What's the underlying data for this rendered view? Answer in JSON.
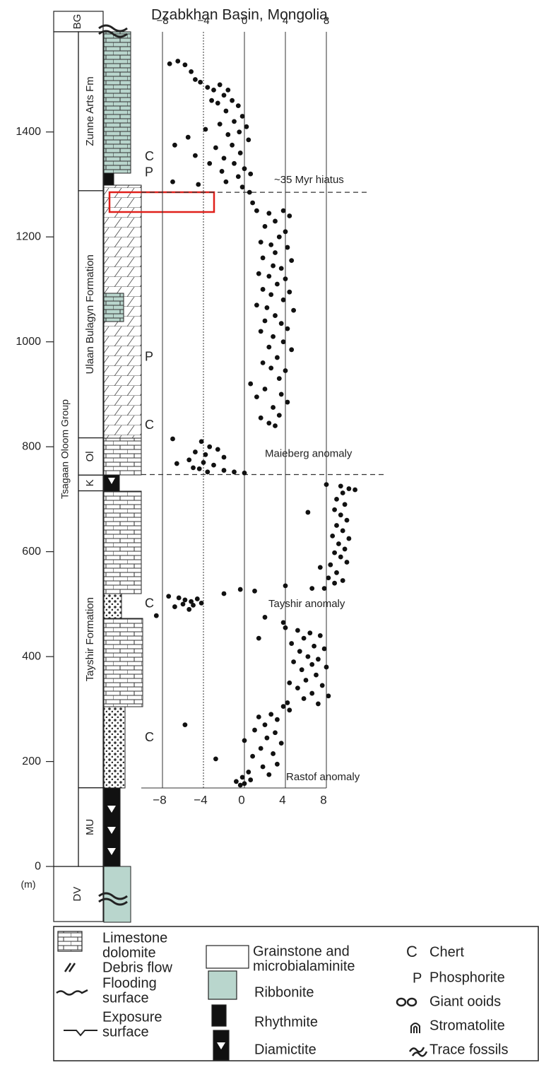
{
  "chart_data": {
    "type": "scatter",
    "title": "Dzabkhan Basin, Mongolia",
    "y_unit": "(m)",
    "xlim": [
      -8,
      12
    ],
    "ylim": [
      -105,
      1630
    ],
    "xticks": [
      {
        "value": -8,
        "label": "−8"
      },
      {
        "value": -4,
        "label": "−4"
      },
      0,
      4,
      8
    ],
    "yticks": [
      0,
      200,
      400,
      600,
      800,
      1000,
      1200,
      1400
    ],
    "color": "#111111",
    "x": [
      -7.3,
      -6.5,
      -5.8,
      -5.2,
      -4.8,
      -4.3,
      -3.6,
      -3.0,
      -2.4,
      -2.0,
      -1.6,
      -3.2,
      -2.6,
      -1.2,
      -0.6,
      -1.8,
      -0.2,
      -1.0,
      -2.4,
      0.2,
      -0.5,
      -1.6,
      -3.8,
      -5.5,
      -6.8,
      0.4,
      -1.2,
      -2.8,
      -0.4,
      -2.0,
      -4.8,
      -3.4,
      -1.0,
      0.0,
      -2.2,
      -0.6,
      0.6,
      -1.8,
      -0.2,
      0.5,
      -4.5,
      -7.0,
      0.8,
      1.2,
      2.4,
      3.8,
      4.4,
      3.0,
      2.0,
      4.0,
      3.4,
      1.6,
      2.6,
      4.2,
      3.0,
      1.8,
      4.6,
      2.8,
      3.6,
      1.4,
      2.4,
      4.0,
      3.2,
      1.8,
      4.4,
      2.6,
      3.8,
      1.2,
      2.2,
      4.8,
      3.0,
      2.0,
      3.6,
      4.2,
      1.6,
      2.8,
      3.8,
      2.4,
      4.6,
      3.2,
      1.8,
      2.6,
      4.0,
      3.4,
      0.6,
      2.0,
      3.6,
      1.2,
      4.2,
      2.8,
      3.4,
      1.6,
      2.4,
      3.0,
      -7.0,
      -4.2,
      -3.4,
      -2.6,
      -4.8,
      -3.8,
      -2.0,
      -5.4,
      -4.0,
      -6.6,
      -3.0,
      -5.0,
      -4.4,
      -2.0,
      -1.0,
      0.0,
      -3.6,
      8.0,
      9.4,
      10.2,
      10.8,
      9.6,
      9.0,
      9.8,
      8.8,
      6.2,
      9.4,
      10.0,
      9.0,
      9.6,
      8.6,
      10.2,
      9.2,
      9.8,
      8.8,
      9.4,
      10.0,
      8.4,
      7.4,
      9.0,
      8.2,
      9.6,
      8.8,
      4.0,
      6.6,
      7.8,
      -7.4,
      -6.4,
      -5.8,
      -5.2,
      -4.6,
      -6.0,
      -5.0,
      -4.2,
      -6.8,
      -5.4,
      -8.6,
      -2.0,
      -0.4,
      1.0,
      2.0,
      3.8,
      4.0,
      5.2,
      6.4,
      7.4,
      5.8,
      4.6,
      6.8,
      7.8,
      5.4,
      6.2,
      7.2,
      4.8,
      6.6,
      8.0,
      5.6,
      7.0,
      6.0,
      4.4,
      7.6,
      5.2,
      6.6,
      8.2,
      5.8,
      7.2,
      4.2,
      1.4,
      3.8,
      4.4,
      2.6,
      1.4,
      3.2,
      2.0,
      -5.8,
      1.0,
      3.0,
      2.2,
      0.0,
      3.6,
      1.6,
      2.8,
      0.8,
      -2.8,
      3.2,
      1.8,
      0.4,
      2.4,
      -0.2,
      0.6,
      -0.8,
      0.0,
      -0.4
    ],
    "values": [
      1530,
      1535,
      1528,
      1515,
      1500,
      1495,
      1485,
      1480,
      1490,
      1470,
      1480,
      1460,
      1455,
      1460,
      1450,
      1440,
      1430,
      1420,
      1415,
      1410,
      1400,
      1395,
      1405,
      1390,
      1375,
      1385,
      1375,
      1370,
      1360,
      1350,
      1355,
      1340,
      1340,
      1330,
      1325,
      1315,
      1320,
      1305,
      1295,
      1285,
      1300,
      1305,
      1265,
      1250,
      1245,
      1250,
      1240,
      1230,
      1220,
      1210,
      1200,
      1190,
      1185,
      1180,
      1170,
      1160,
      1155,
      1145,
      1140,
      1130,
      1125,
      1120,
      1110,
      1100,
      1095,
      1090,
      1080,
      1070,
      1065,
      1060,
      1050,
      1040,
      1035,
      1025,
      1020,
      1010,
      1000,
      990,
      985,
      970,
      960,
      950,
      945,
      930,
      920,
      910,
      900,
      895,
      885,
      875,
      860,
      855,
      845,
      840,
      815,
      810,
      800,
      795,
      790,
      785,
      780,
      775,
      770,
      768,
      765,
      760,
      758,
      755,
      752,
      750,
      752,
      728,
      725,
      720,
      718,
      712,
      700,
      690,
      680,
      675,
      670,
      660,
      650,
      640,
      630,
      625,
      615,
      605,
      598,
      590,
      580,
      575,
      570,
      560,
      550,
      545,
      540,
      535,
      530,
      530,
      515,
      512,
      508,
      505,
      510,
      500,
      498,
      502,
      495,
      490,
      478,
      520,
      528,
      525,
      475,
      465,
      455,
      450,
      445,
      440,
      435,
      425,
      420,
      415,
      410,
      400,
      395,
      390,
      385,
      380,
      375,
      365,
      355,
      350,
      345,
      340,
      330,
      325,
      320,
      310,
      312,
      435,
      305,
      298,
      290,
      285,
      280,
      270,
      270,
      260,
      255,
      245,
      240,
      235,
      225,
      215,
      210,
      205,
      195,
      190,
      180,
      175,
      170,
      165,
      162,
      158,
      155
    ],
    "annotations": [
      {
        "text": "~35 Myr hiatus",
        "value": 1285,
        "dashed": true
      },
      {
        "text": "Maieberg anomaly",
        "value": 747,
        "dashed": true
      },
      {
        "text": "Tayshir anomaly",
        "value": 500
      },
      {
        "text": "Rastof anomaly",
        "value": 170
      }
    ],
    "groups": [
      {
        "label": "BG",
        "base": 1591,
        "top": 1630
      },
      {
        "label": "Tsagaan Oloom Group",
        "base": 0,
        "top": 1591
      },
      {
        "label": "DV",
        "base": -105,
        "top": 0
      }
    ],
    "formations": [
      {
        "label": "Zunne Arts Fm",
        "base": 1288,
        "top": 1591
      },
      {
        "label": "Ulaan Bulagyn Formation",
        "base": 817,
        "top": 1288
      },
      {
        "label": "Ol",
        "base": 746,
        "top": 817
      },
      {
        "label": "K",
        "base": 716,
        "top": 746
      },
      {
        "label": "Tayshir Formation",
        "base": 150,
        "top": 716
      },
      {
        "label": "MU",
        "base": 0,
        "top": 150
      }
    ],
    "column_marks": [
      {
        "text": "C",
        "value": 1352
      },
      {
        "text": "P",
        "value": 1322
      },
      {
        "text": "P",
        "value": 970
      },
      {
        "text": "C",
        "value": 840
      },
      {
        "text": "C",
        "value": 500
      },
      {
        "text": "C",
        "value": 245
      }
    ],
    "legend": [
      {
        "lines": [
          "Limestone",
          "dolomite"
        ]
      },
      {
        "lines": [
          "Debris flow"
        ]
      },
      {
        "lines": [
          "Flooding",
          "surface"
        ]
      },
      {
        "lines": [
          "Exposure",
          "surface"
        ]
      },
      {
        "lines": [
          "Grainstone and",
          "microbialaminite"
        ]
      },
      {
        "lines": [
          "Ribbonite"
        ]
      },
      {
        "lines": [
          "Rhythmite"
        ]
      },
      {
        "lines": [
          "Diamictite"
        ]
      },
      {
        "lines": [
          "Chert"
        ]
      },
      {
        "lines": [
          "Phosphorite"
        ]
      },
      {
        "lines": [
          "Giant ooids"
        ]
      },
      {
        "lines": [
          "Stromatolite"
        ]
      },
      {
        "lines": [
          "Trace fossils"
        ]
      }
    ]
  }
}
